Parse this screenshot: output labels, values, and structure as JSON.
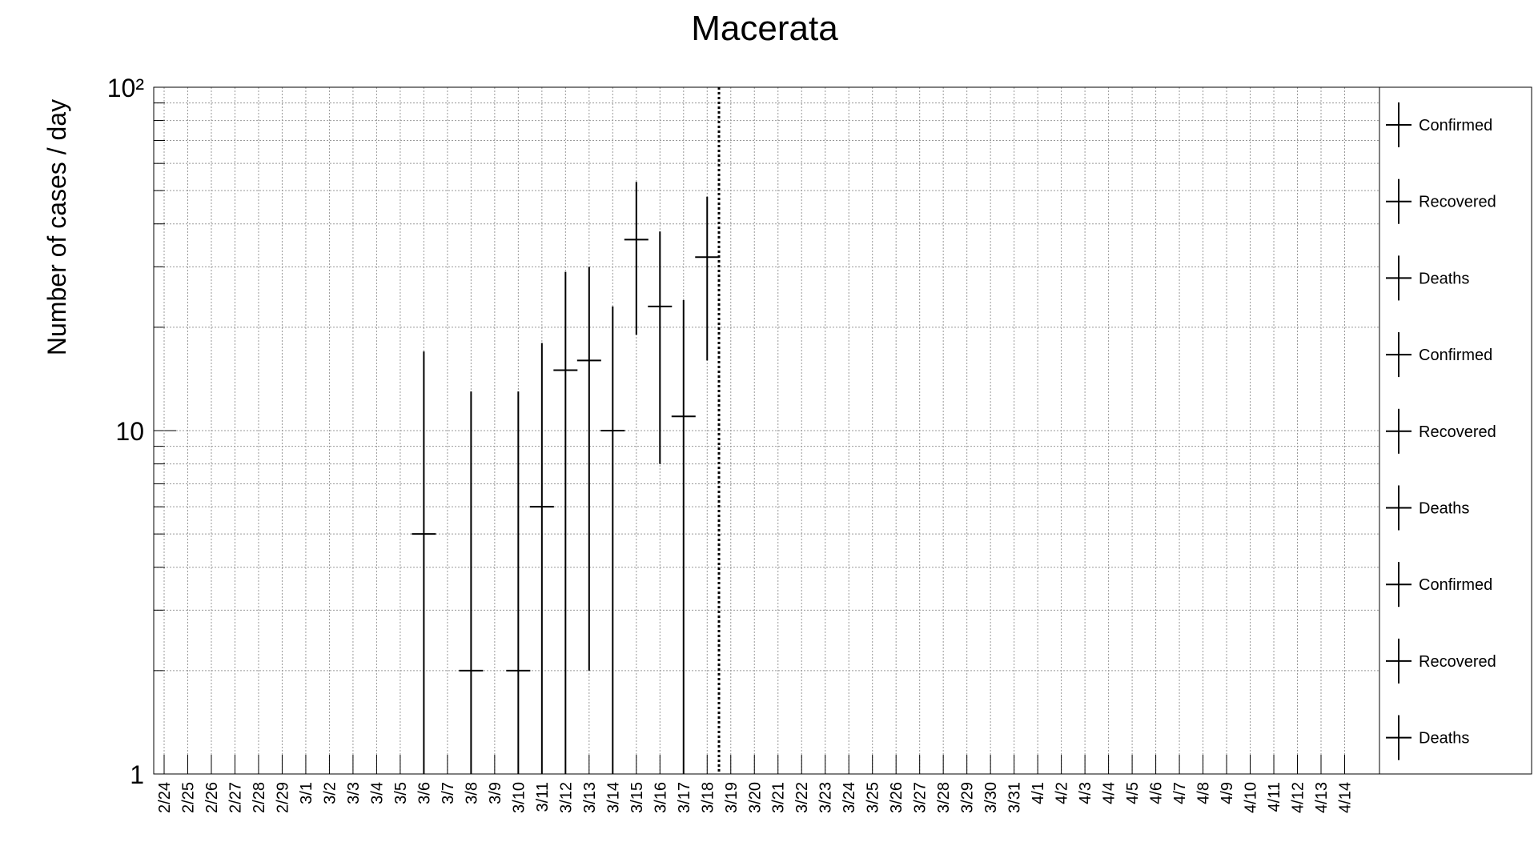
{
  "chart_data": {
    "type": "errorbar",
    "title": "Macerata",
    "y_label": "Number of cases / day",
    "log_scale": true,
    "grid": true,
    "color": "#000000",
    "categories": [
      "2/24",
      "2/25",
      "2/26",
      "2/27",
      "2/28",
      "2/29",
      "3/1",
      "3/2",
      "3/3",
      "3/4",
      "3/5",
      "3/6",
      "3/7",
      "3/8",
      "3/9",
      "3/10",
      "3/11",
      "3/12",
      "3/13",
      "3/14",
      "3/15",
      "3/16",
      "3/17",
      "3/18",
      "3/19",
      "3/20",
      "3/21",
      "3/22",
      "3/23",
      "3/24",
      "3/25",
      "3/26",
      "3/27",
      "3/28",
      "3/29",
      "3/30",
      "3/31",
      "4/1",
      "4/2",
      "4/3",
      "4/4",
      "4/5",
      "4/6",
      "4/7",
      "4/8",
      "4/9",
      "4/10",
      "4/11",
      "4/12",
      "4/13",
      "4/14"
    ],
    "values": [
      null,
      null,
      null,
      null,
      null,
      null,
      null,
      null,
      null,
      null,
      null,
      5,
      null,
      2,
      null,
      2,
      6,
      15,
      16,
      10,
      36,
      23,
      11,
      32,
      null,
      null,
      null,
      null,
      null,
      null,
      null,
      null,
      null,
      null,
      null,
      null,
      null,
      null,
      null,
      null,
      null,
      null,
      null,
      null,
      null,
      null,
      null,
      null,
      null,
      null,
      null
    ],
    "errors": [
      null,
      null,
      null,
      null,
      null,
      null,
      null,
      null,
      null,
      null,
      null,
      12,
      null,
      11,
      null,
      11,
      12,
      14,
      14,
      13,
      17,
      15,
      13,
      16,
      null,
      null,
      null,
      null,
      null,
      null,
      null,
      null,
      null,
      null,
      null,
      null,
      null,
      null,
      null,
      null,
      null,
      null,
      null,
      null,
      null,
      null,
      null,
      null,
      null,
      null,
      null
    ],
    "ylim": [
      1,
      100
    ],
    "yticks": [
      1,
      10,
      {
        "value": 100,
        "label": "10²"
      }
    ],
    "legend": [
      "Confirmed",
      "Recovered",
      "Deaths",
      "Confirmed",
      "Recovered",
      "Deaths",
      "Confirmed",
      "Recovered",
      "Deaths"
    ]
  }
}
